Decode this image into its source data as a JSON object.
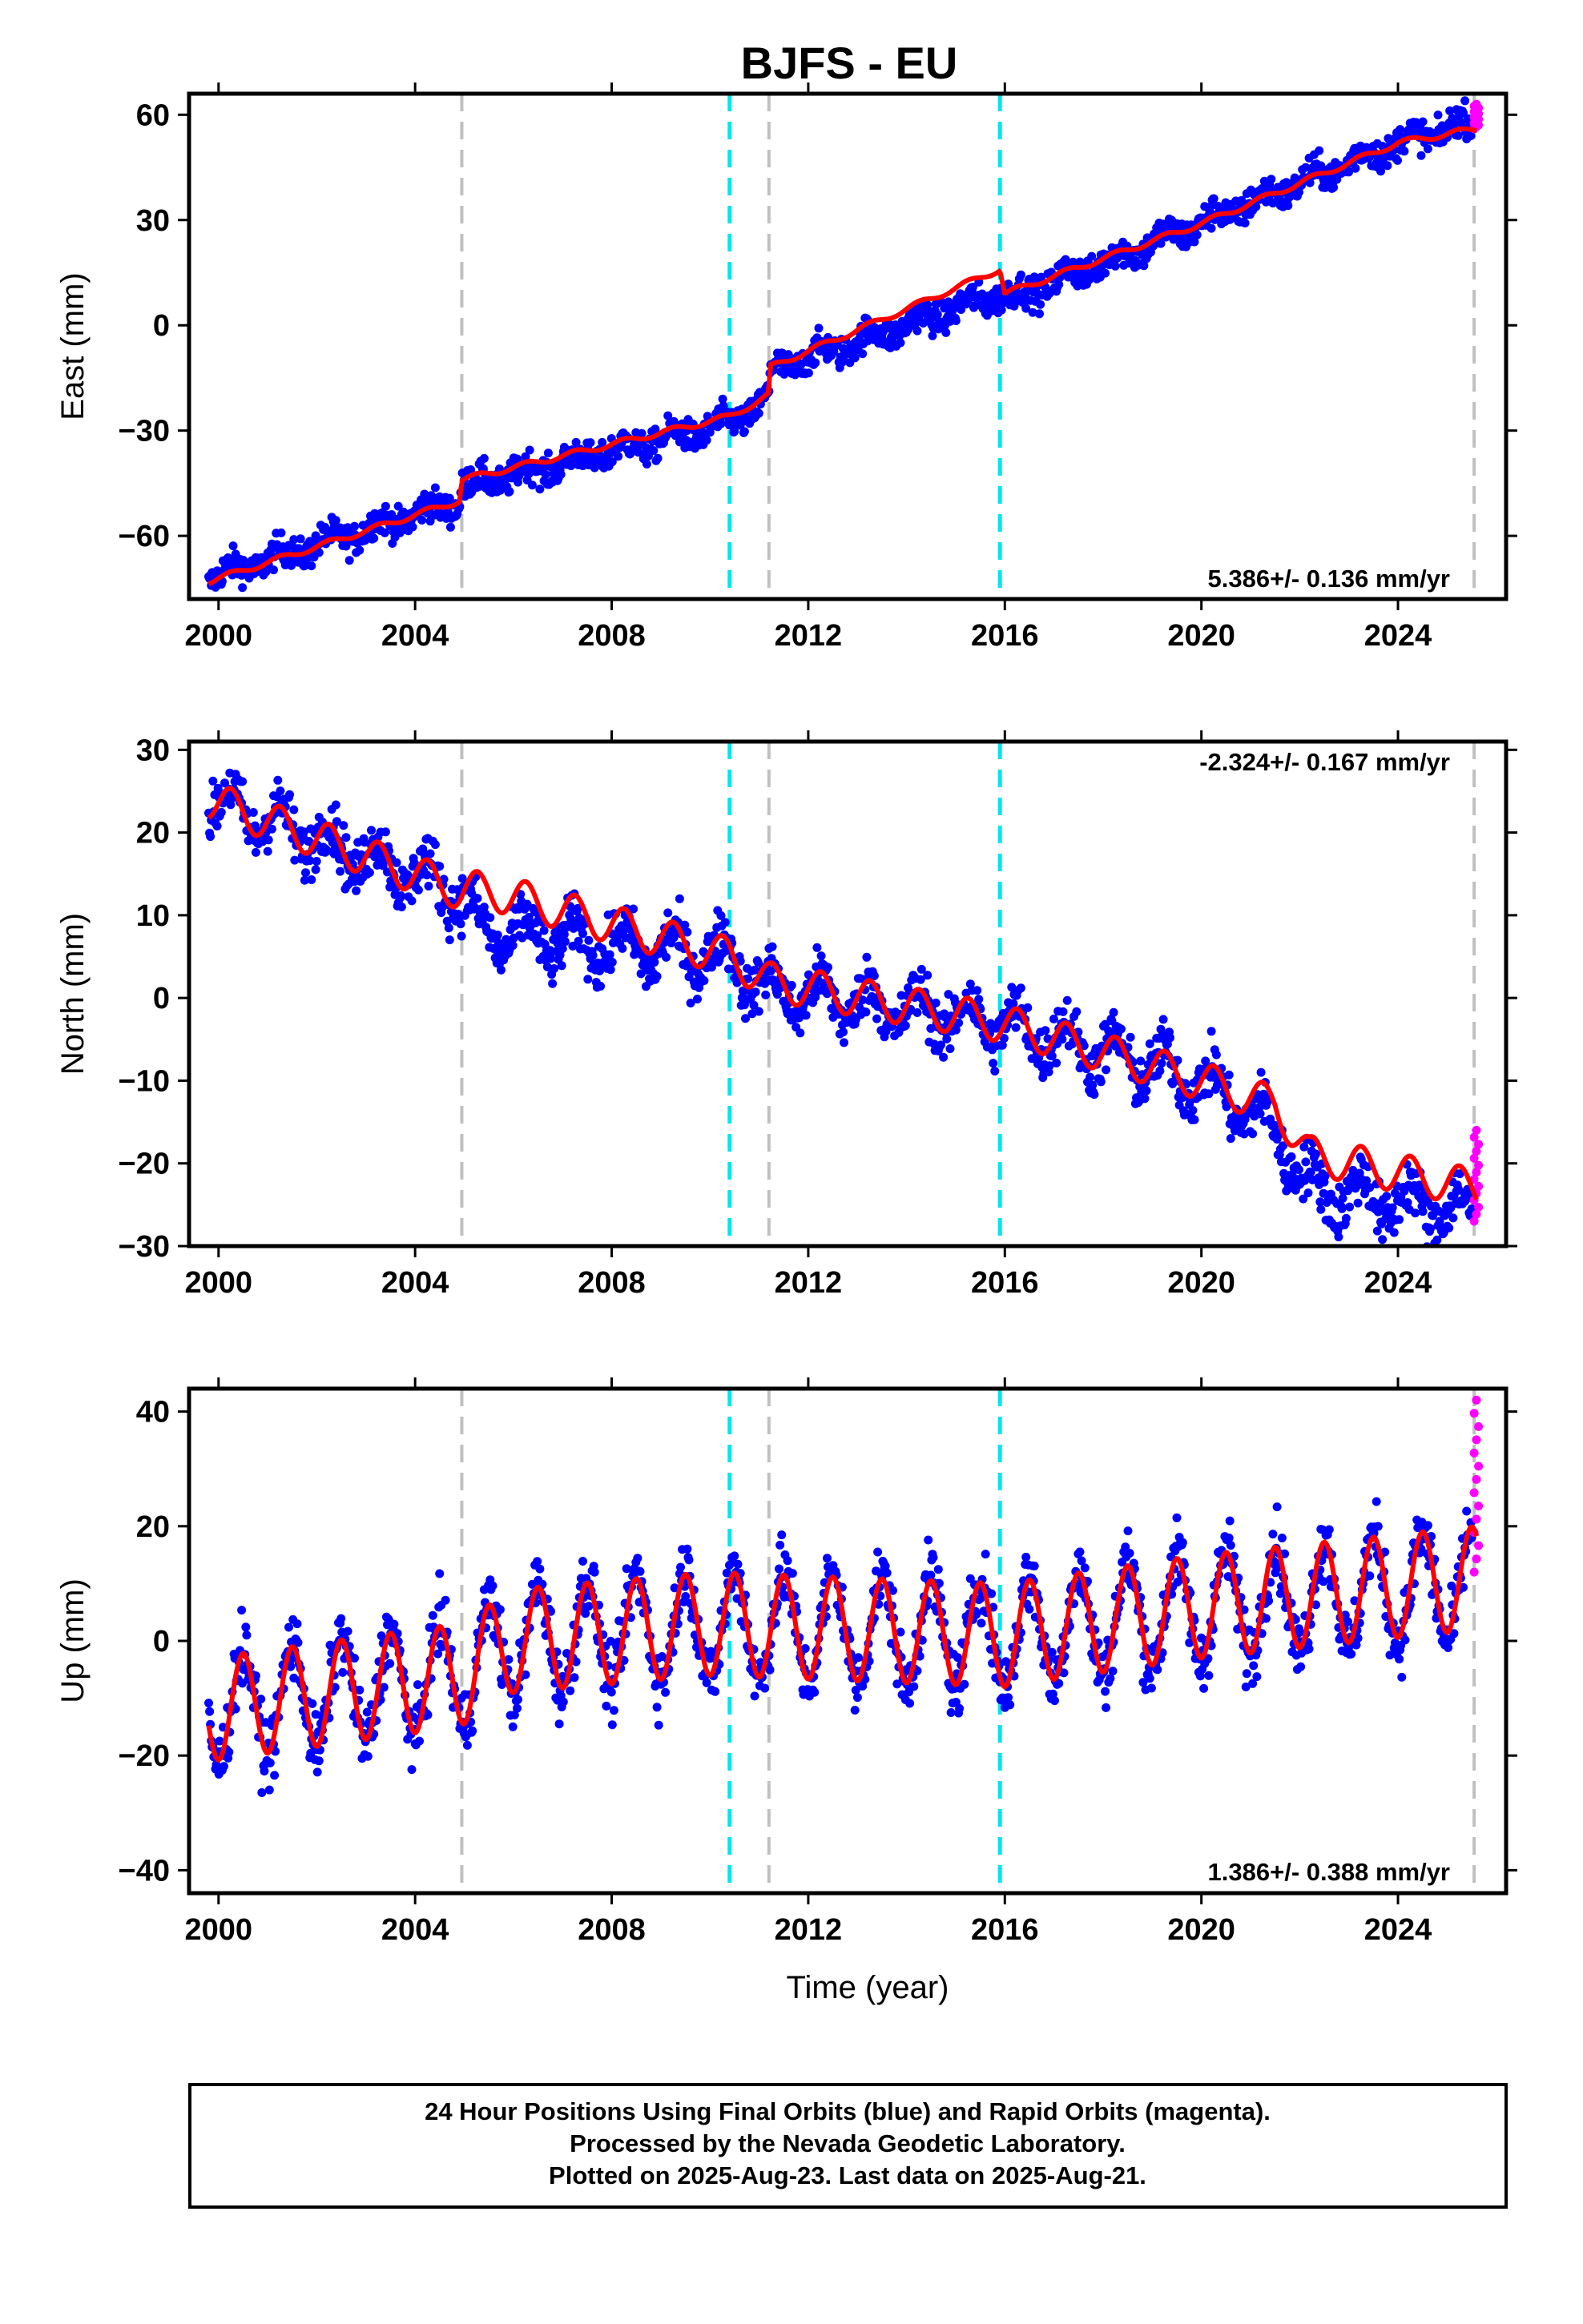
{
  "title": "BJFS - EU",
  "xlabel": "Time (year)",
  "footer": {
    "line1": "24 Hour Positions Using Final Orbits (blue) and Rapid Orbits (magenta).",
    "line2": "Processed by the Nevada Geodetic Laboratory.",
    "line3": "Plotted on 2025-Aug-23. Last data on 2025-Aug-21."
  },
  "colors": {
    "final_orbits": "#0000ff",
    "rapid_orbits": "#ff00ff",
    "model": "#ff0000",
    "equipment_change": "#c0c0c0",
    "earthquake": "#00e5ee"
  },
  "chart_data": [
    {
      "type": "scatter",
      "panel": "east",
      "ylabel": "East (mm)",
      "rate_text": "5.386+/- 0.136 mm/yr",
      "xlim": [
        1999.4,
        2026.2
      ],
      "ylim": [
        -78,
        66
      ],
      "xticks": [
        2000,
        2004,
        2008,
        2012,
        2016,
        2020,
        2024
      ],
      "xtick_labels": [
        "2000",
        "2004",
        "2008",
        "2012",
        "2016",
        "2020",
        "2024"
      ],
      "yticks": [
        -60,
        -30,
        0,
        30,
        60
      ],
      "ytick_labels": [
        "−60",
        "−30",
        "0",
        "30",
        "60"
      ],
      "grey_lines": [
        2004.95,
        2011.2,
        2025.55
      ],
      "cyan_lines": [
        2010.4,
        2015.9
      ],
      "series": [
        {
          "name": "Final Orbits",
          "x_start": 1999.8,
          "x_end": 2025.5,
          "trend": [
            [
              1999.8,
              -72
            ],
            [
              2004.9,
              -50
            ],
            [
              2004.95,
              -46
            ],
            [
              2010.4,
              -28
            ],
            [
              2011.2,
              -21
            ],
            [
              2011.22,
              -13
            ],
            [
              2015.9,
              9
            ],
            [
              2016.2,
              8
            ],
            [
              2020,
              29
            ],
            [
              2024,
              52
            ],
            [
              2025.5,
              58
            ]
          ],
          "annual_amp": 2,
          "scatter": 3.2
        },
        {
          "name": "Rapid Orbits",
          "x_start": 2025.55,
          "x_end": 2025.64,
          "y_range": [
            56,
            63
          ]
        }
      ],
      "model": [
        [
          1999.8,
          -73
        ],
        [
          2004.9,
          -50
        ],
        [
          2004.95,
          -44
        ],
        [
          2010.4,
          -26
        ],
        [
          2011.2,
          -20
        ],
        [
          2011.22,
          -12
        ],
        [
          2015.9,
          16
        ],
        [
          2016.0,
          9
        ],
        [
          2020,
          29
        ],
        [
          2024,
          52
        ],
        [
          2025.6,
          56
        ]
      ]
    },
    {
      "type": "scatter",
      "panel": "north",
      "ylabel": "North (mm)",
      "rate_text": "-2.324+/- 0.167 mm/yr",
      "xlim": [
        1999.4,
        2026.2
      ],
      "ylim": [
        -30,
        31
      ],
      "xticks": [
        2000,
        2004,
        2008,
        2012,
        2016,
        2020,
        2024
      ],
      "xtick_labels": [
        "2000",
        "2004",
        "2008",
        "2012",
        "2016",
        "2020",
        "2024"
      ],
      "yticks": [
        -30,
        -20,
        -10,
        0,
        10,
        20,
        30
      ],
      "ytick_labels": [
        "−30",
        "−20",
        "−10",
        "0",
        "10",
        "20",
        "30"
      ],
      "grey_lines": [
        2004.95,
        2011.2,
        2025.55
      ],
      "cyan_lines": [
        2010.4,
        2015.9
      ],
      "series": [
        {
          "name": "Final Orbits",
          "x_start": 1999.8,
          "x_end": 2025.5,
          "trend": [
            [
              1999.8,
              24
            ],
            [
              2004.9,
              13
            ],
            [
              2005.3,
              8
            ],
            [
              2010.4,
              5
            ],
            [
              2011.2,
              1
            ],
            [
              2015.9,
              -3
            ],
            [
              2020,
              -10
            ],
            [
              2021.5,
              -16
            ],
            [
              2022.2,
              -23
            ],
            [
              2025.5,
              -26
            ]
          ],
          "annual_amp": 2.5,
          "scatter": 2.4
        },
        {
          "name": "Rapid Orbits",
          "x_start": 2025.55,
          "x_end": 2025.64,
          "y_range": [
            -27,
            -16
          ]
        }
      ],
      "model": [
        [
          1999.8,
          24
        ],
        [
          2004.9,
          13
        ],
        [
          2005.5,
          13
        ],
        [
          2010.4,
          5
        ],
        [
          2011.2,
          2
        ],
        [
          2015.9,
          -3
        ],
        [
          2020,
          -10
        ],
        [
          2021.5,
          -13
        ],
        [
          2022.2,
          -19
        ],
        [
          2025.6,
          -23
        ]
      ],
      "model_annual_amp": 2.3
    },
    {
      "type": "scatter",
      "panel": "up",
      "ylabel": "Up (mm)",
      "rate_text": "1.386+/- 0.388 mm/yr",
      "xlim": [
        1999.4,
        2026.2
      ],
      "ylim": [
        -44,
        44
      ],
      "xticks": [
        2000,
        2004,
        2008,
        2012,
        2016,
        2020,
        2024
      ],
      "xtick_labels": [
        "2000",
        "2004",
        "2008",
        "2012",
        "2016",
        "2020",
        "2024"
      ],
      "yticks": [
        -40,
        -20,
        0,
        20,
        40
      ],
      "ytick_labels": [
        "−40",
        "−20",
        "0",
        "20",
        "40"
      ],
      "grey_lines": [
        2004.95,
        2011.2,
        2025.55
      ],
      "cyan_lines": [
        2010.4,
        2015.9
      ],
      "series": [
        {
          "name": "Final Orbits",
          "x_start": 1999.8,
          "x_end": 2025.5,
          "trend": [
            [
              1999.8,
              -12
            ],
            [
              2004.9,
              -6
            ],
            [
              2006,
              0
            ],
            [
              2010,
              3
            ],
            [
              2016,
              1
            ],
            [
              2020,
              6
            ],
            [
              2025.5,
              10
            ]
          ],
          "annual_amp": 9.5,
          "scatter": 4.2
        },
        {
          "name": "Rapid Orbits",
          "x_start": 2025.55,
          "x_end": 2025.64,
          "y_range": [
            12,
            42
          ]
        }
      ],
      "model": [
        [
          1999.8,
          -12
        ],
        [
          2004.9,
          -6
        ],
        [
          2006,
          0
        ],
        [
          2010,
          3
        ],
        [
          2016,
          1
        ],
        [
          2020,
          6
        ],
        [
          2025.6,
          11
        ]
      ],
      "model_annual_amp": 9
    }
  ]
}
